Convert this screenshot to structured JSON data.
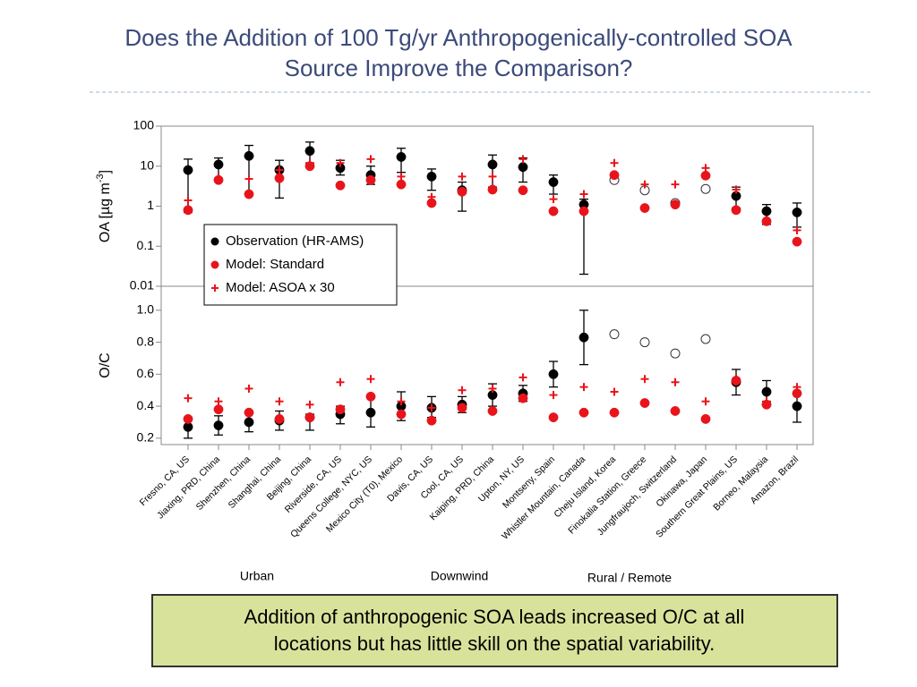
{
  "title_lines": [
    "Does the Addition of 100 Tg/yr Anthropogenically-controlled SOA",
    "Source Improve the Comparison?"
  ],
  "categories": [
    "Fresno, CA, US",
    "Jiaxing, PRD, China",
    "Shenzhen, China",
    "Shanghai, China",
    "Beijing, China",
    "Riverside, CA, US",
    "Queens College, NYC, US",
    "Mexico City (T0), Mexico",
    "Davis, CA, US",
    "Cool, CA, US",
    "Kaiping, PRD, China",
    "Upton, NY, US",
    "Montseny, Spain",
    "Whistler Mountain, Canada",
    "Cheju Island, Korea",
    "Finokalia Station, Greece",
    "Jungfraujoch, Switzerland",
    "Okinawa, Japan",
    "Southern Great Plains, US",
    "Borneo, Malaysia",
    "Amazon, Brazil"
  ],
  "group_labels": [
    "Urban",
    "Downwind",
    "Rural / Remote"
  ],
  "note_lines": [
    "Addition of anthropogenic SOA leads increased O/C at all",
    "locations but has little skill on the spatial variability."
  ],
  "chart_data": [
    {
      "type": "scatter",
      "ylabel": [
        "OA [µg m",
        "-3",
        "]"
      ],
      "log_scale": true,
      "ylim": [
        0.01,
        100
      ],
      "yticks": [
        100,
        10,
        1,
        0.1,
        0.01
      ],
      "legend": "lower left",
      "series": [
        {
          "name": "Observation (HR-AMS)",
          "color": "#000000",
          "marker": "circle",
          "values": [
            8,
            11,
            18,
            8,
            24,
            9,
            6,
            17,
            5.5,
            2.5,
            11,
            9.5,
            4,
            1.1,
            4.5,
            2.5,
            1.2,
            2.7,
            1.8,
            0.75,
            0.7
          ],
          "lower": [
            0.7,
            5,
            2,
            1.6,
            12,
            6,
            3.5,
            7,
            2.5,
            0.75,
            3,
            4,
            2,
            0.02,
            null,
            null,
            null,
            null,
            0.9,
            0.35,
            0.3
          ],
          "upper": [
            15,
            16,
            33,
            14,
            40,
            14,
            10,
            28,
            8.5,
            4,
            19,
            16,
            6,
            1.5,
            null,
            null,
            null,
            null,
            3,
            1.1,
            1.2
          ],
          "open": [
            false,
            false,
            false,
            false,
            false,
            false,
            false,
            false,
            false,
            false,
            false,
            false,
            false,
            false,
            true,
            true,
            true,
            true,
            false,
            false,
            false
          ]
        },
        {
          "name": "Model: Standard",
          "color": "#e8141b",
          "marker": "circle",
          "values": [
            0.8,
            4.5,
            2,
            5,
            10,
            3.3,
            4.5,
            3.5,
            1.2,
            2.3,
            2.6,
            2.5,
            0.75,
            0.75,
            6,
            0.9,
            1.1,
            5.8,
            0.8,
            0.42,
            0.13
          ]
        },
        {
          "name": "Model: ASOA x 30",
          "color": "#e8141b",
          "marker": "plus",
          "values": [
            1.4,
            5,
            4.8,
            8,
            12,
            12,
            15,
            5.5,
            1.7,
            5.5,
            5.5,
            15,
            1.5,
            2,
            12,
            3.5,
            3.5,
            9,
            2.6,
            0.45,
            0.25
          ]
        }
      ]
    },
    {
      "type": "scatter",
      "ylabel": [
        "O/C"
      ],
      "log_scale": false,
      "ylim": [
        0.16,
        1.15
      ],
      "yticks": [
        {
          "value": 1,
          "label": "1.0"
        },
        0.8,
        0.6,
        0.4,
        0.2
      ],
      "series": [
        {
          "color": "#000000",
          "marker": "circle",
          "values": [
            0.27,
            0.28,
            0.3,
            0.31,
            0.33,
            0.35,
            0.36,
            0.4,
            0.39,
            0.41,
            0.47,
            0.48,
            0.6,
            0.83,
            0.85,
            0.8,
            0.73,
            0.82,
            0.55,
            0.49,
            0.4
          ],
          "lower": [
            0.2,
            0.22,
            0.24,
            0.25,
            0.25,
            0.29,
            0.27,
            0.31,
            0.33,
            0.36,
            0.4,
            0.43,
            0.52,
            0.66,
            null,
            null,
            null,
            null,
            0.47,
            0.43,
            0.3
          ],
          "upper": [
            0.33,
            0.34,
            0.36,
            0.37,
            0.35,
            0.4,
            0.46,
            0.49,
            0.46,
            0.46,
            0.54,
            0.53,
            0.68,
            1,
            null,
            null,
            null,
            null,
            0.63,
            0.56,
            0.48
          ],
          "open": [
            false,
            false,
            false,
            false,
            false,
            false,
            false,
            false,
            false,
            false,
            false,
            false,
            false,
            false,
            true,
            true,
            true,
            true,
            false,
            false,
            false
          ]
        },
        {
          "color": "#e8141b",
          "marker": "circle",
          "values": [
            0.32,
            0.38,
            0.36,
            0.32,
            0.33,
            0.38,
            0.46,
            0.35,
            0.31,
            0.39,
            0.37,
            0.45,
            0.33,
            0.36,
            0.36,
            0.42,
            0.37,
            0.32,
            0.56,
            0.41,
            0.48
          ]
        },
        {
          "color": "#e8141b",
          "marker": "plus",
          "values": [
            0.45,
            0.43,
            0.51,
            0.43,
            0.41,
            0.55,
            0.57,
            0.43,
            0.39,
            0.5,
            0.51,
            0.58,
            0.47,
            0.52,
            0.49,
            0.57,
            0.55,
            0.43,
            0.57,
            0.43,
            0.52
          ]
        }
      ]
    }
  ]
}
